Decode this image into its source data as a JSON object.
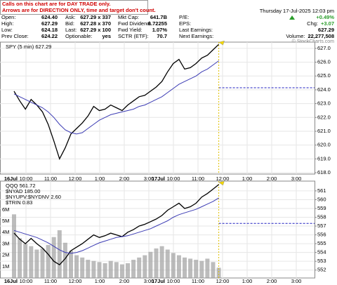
{
  "header": {
    "notice": [
      "Calls on this chart are for DAY TRADE only.",
      "Arrows are for DIRECTION ONLY, time and target don't count."
    ],
    "date": "Thursday 17-Jul-2025 12:03 pm",
    "rows": [
      [
        "Open:",
        "624.40",
        "Ask:",
        "627.29 x 337",
        "Mkt Cap:",
        "641.7B",
        "P/E:"
      ],
      [
        "High:",
        "627.29",
        "Bid:",
        "627.28 x 370",
        "Fwd Dividend:",
        "6.72255",
        "EPS:"
      ],
      [
        "Low:",
        "624.18",
        "Last:",
        "627.29 x 100",
        "Fwd Yield:",
        "1.07%",
        "Last Earnings:"
      ],
      [
        "Prev Close:",
        "624.22",
        "Optionable:",
        "yes",
        "SCTR (ETF):",
        "70.7",
        "Next Earnings:"
      ]
    ],
    "right": [
      [
        "+0.49%"
      ],
      [
        "Chg:",
        "+3.07"
      ],
      [
        "627.29"
      ],
      [
        "Volume:",
        "22,277,508"
      ]
    ],
    "copyright": "© StockCharts.com"
  },
  "chart_data": [
    {
      "type": "line",
      "day_labels": [
        "16Jul",
        "17Jul"
      ],
      "xtick_labels": [
        "10:00",
        "11:00",
        "12:00",
        "1:00",
        "2:00",
        "3:00",
        "10:00",
        "11:00",
        "12:00",
        "1:00",
        "2:00",
        "3:00"
      ],
      "series": [
        {
          "name": "SPY (5 min) 627.29",
          "color": "#000000",
          "values": [
            623.9,
            623.2,
            622.6,
            623.3,
            622.9,
            622.4,
            621.5,
            620.3,
            619.0,
            619.8,
            620.8,
            621.2,
            621.6,
            622.1,
            622.8,
            622.5,
            622.6,
            622.9,
            622.7,
            622.5,
            622.9,
            623.2,
            623.5,
            623.6,
            623.9,
            624.2,
            624.6,
            625.3,
            625.9,
            626.2,
            625.5,
            625.6,
            625.9,
            626.3,
            626.5,
            626.9,
            627.29
          ]
        },
        {
          "color": "#3c3cb4",
          "values": [
            623.7,
            623.5,
            623.3,
            623.1,
            622.9,
            622.7,
            622.4,
            622.0,
            621.5,
            621.1,
            620.9,
            620.8,
            620.9,
            621.2,
            621.5,
            621.8,
            622.0,
            622.2,
            622.3,
            622.4,
            622.5,
            622.6,
            622.8,
            622.9,
            623.1,
            623.3,
            623.5,
            623.8,
            624.1,
            624.4,
            624.6,
            624.8,
            625.0,
            625.3,
            625.5,
            625.8,
            626.1
          ]
        }
      ],
      "reference_value": 624.15,
      "ylim": [
        617.9,
        627.35
      ],
      "yticks": [
        {
          "value": 618,
          "label": "618.0"
        },
        {
          "value": 619,
          "label": "619.0"
        },
        {
          "value": 620,
          "label": "620.0"
        },
        {
          "value": 621,
          "label": "621.0"
        },
        {
          "value": 622,
          "label": "622.0"
        },
        {
          "value": 623,
          "label": "623.0"
        },
        {
          "value": 624,
          "label": "624.0"
        },
        {
          "value": 625,
          "label": "625.0"
        },
        {
          "value": 626,
          "label": "626.0"
        },
        {
          "value": 627,
          "label": "627.0"
        }
      ],
      "grid": true
    },
    {
      "type": "line",
      "day_labels": [
        "16Jul",
        "17Jul"
      ],
      "xtick_labels": [
        "10:00",
        "11:00",
        "12:00",
        "1:00",
        "2:00",
        "3:00",
        "10:00",
        "11:00",
        "12:00",
        "1:00",
        "2:00",
        "3:00"
      ],
      "series": [
        {
          "name": "QQQ 561.72",
          "color": "#000000",
          "values": [
            556.2,
            555.5,
            555.0,
            555.6,
            555.0,
            554.5,
            553.8,
            553.0,
            552.6,
            553.3,
            554.2,
            554.6,
            555.0,
            555.5,
            556.0,
            555.7,
            555.9,
            556.2,
            556.0,
            555.8,
            556.3,
            556.6,
            557.0,
            557.2,
            557.5,
            557.8,
            558.2,
            558.8,
            559.2,
            559.6,
            559.0,
            559.2,
            559.6,
            560.3,
            560.7,
            561.2,
            561.72
          ]
        },
        {
          "color": "#3c3cb4",
          "values": [
            556.5,
            556.3,
            556.1,
            555.9,
            555.7,
            555.4,
            555.1,
            554.7,
            554.3,
            554.0,
            553.9,
            554.0,
            554.2,
            554.5,
            554.8,
            555.1,
            555.3,
            555.5,
            555.7,
            555.8,
            555.9,
            556.1,
            556.3,
            556.5,
            556.7,
            557.0,
            557.3,
            557.6,
            558.0,
            558.3,
            558.5,
            558.7,
            558.9,
            559.2,
            559.5,
            559.8,
            560.2
          ]
        }
      ],
      "annotations": [
        "$NYAD 185.00",
        "$NYUPV:$NYDNV 2.60",
        "$TRIN 0.83"
      ],
      "reference_value": 557.3,
      "ylim": [
        551.1,
        561.95
      ],
      "yticks": [
        552,
        553,
        554,
        555,
        556,
        557,
        558,
        559,
        560,
        561
      ],
      "volume": {
        "color": "#a0a0a0",
        "values": [
          5.6,
          3.5,
          3.0,
          2.8,
          2.5,
          2.6,
          2.9,
          3.6,
          4.2,
          3.1,
          2.4,
          2.0,
          1.8,
          1.6,
          1.5,
          1.4,
          1.3,
          1.5,
          1.4,
          1.2,
          1.3,
          1.6,
          1.8,
          2.0,
          2.3,
          2.6,
          2.8,
          2.5,
          2.2,
          2.0,
          1.8,
          1.7,
          1.6,
          1.5,
          1.7,
          1.4,
          0.9
        ],
        "ylim": [
          0,
          8.4
        ],
        "yticks": [
          {
            "value": 1,
            "label": "1M"
          },
          {
            "value": 2,
            "label": "2M"
          },
          {
            "value": 3,
            "label": "3M"
          },
          {
            "value": 4,
            "label": "4M"
          },
          {
            "value": 5,
            "label": "5M"
          },
          {
            "value": 6,
            "label": "6M"
          }
        ]
      },
      "grid": true
    }
  ]
}
